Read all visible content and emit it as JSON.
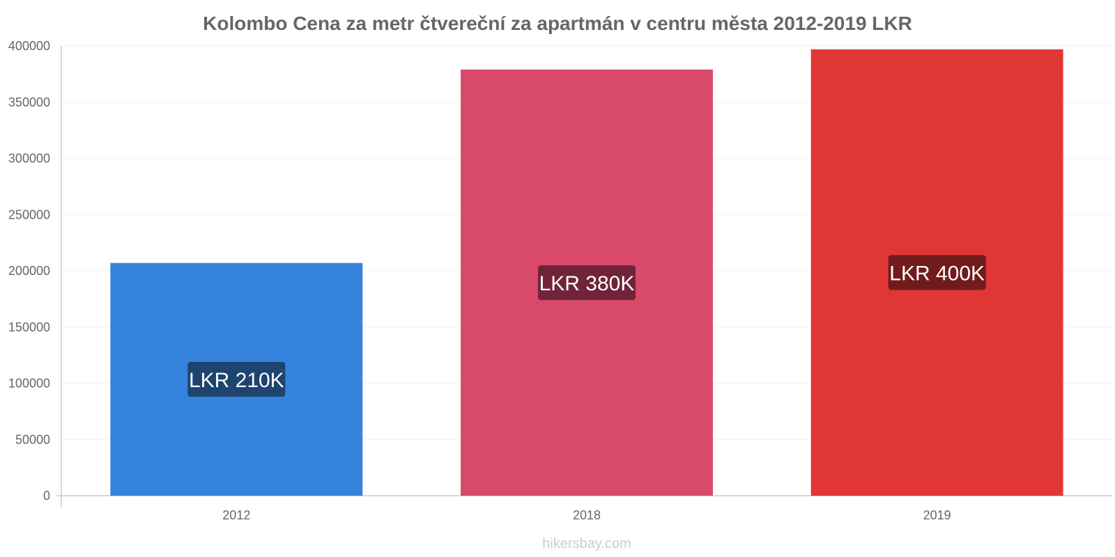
{
  "chart_data": {
    "type": "bar",
    "title": "Kolombo Cena za metr čtvereční za apartmán v centru města 2012-2019 LKR",
    "xlabel": "",
    "ylabel": "",
    "categories": [
      "2012",
      "2018",
      "2019"
    ],
    "values": [
      207000,
      379000,
      397000
    ],
    "data_labels": [
      "LKR 210K",
      "LKR 380K",
      "LKR 400K"
    ],
    "colors": [
      "#3683dd",
      "#d9496a",
      "#e03636"
    ],
    "label_bg_colors": [
      "#1e4470",
      "#70243a",
      "#701c1c"
    ],
    "ylim": [
      0,
      400000
    ],
    "yticks": [
      "0",
      "50000",
      "100000",
      "150000",
      "200000",
      "250000",
      "300000",
      "350000",
      "400000"
    ],
    "grid": true,
    "legend": "none"
  },
  "watermark": "hikersbay.com"
}
